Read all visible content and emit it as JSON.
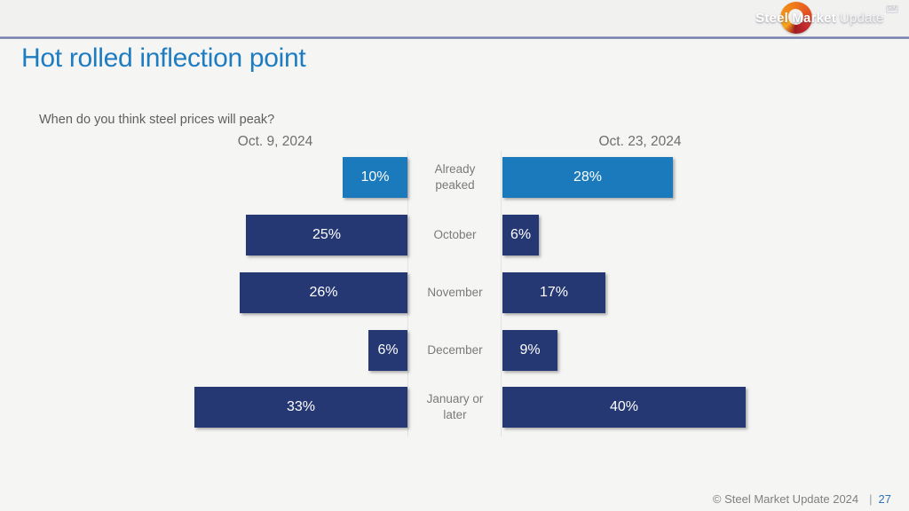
{
  "brand": {
    "logo_text_bold": "Steel Market",
    "logo_text_light": "Update",
    "logo_trademark": "SM"
  },
  "title": "Hot rolled inflection point",
  "question": "When do you think steel prices will peak?",
  "footer": {
    "copyright": "© Steel Market Update 2024",
    "separator": "|",
    "page": "27"
  },
  "chart_data": {
    "type": "bar",
    "variant": "butterfly / diverging horizontal comparison",
    "title": "When do you think steel prices will peak?",
    "categories": [
      "Already peaked",
      "October",
      "November",
      "December",
      "January or later"
    ],
    "series": [
      {
        "name": "Oct. 9, 2024",
        "side": "left",
        "values": [
          10,
          25,
          26,
          6,
          33
        ]
      },
      {
        "name": "Oct. 23, 2024",
        "side": "right",
        "values": [
          28,
          6,
          17,
          9,
          40
        ]
      }
    ],
    "value_suffix": "%",
    "highlight_category_index": 0,
    "colors": {
      "bar_default": "#253873",
      "bar_highlight": "#1b7abc",
      "value_label": "#ffffff",
      "category_label": "#7a7a7a"
    },
    "axes": {
      "left_max_pct": 42,
      "right_max_pct": 45,
      "gridlines": false,
      "value_labels": "inside-center"
    },
    "legend_position": "series names shown as column headers above each side"
  }
}
